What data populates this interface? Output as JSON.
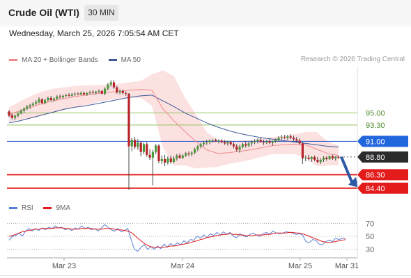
{
  "header": {
    "title": "Crude Oil (WTI)",
    "timeframe": "30 MIN"
  },
  "datetime": "Wednesday, March 25, 2026 7:05:54 AM CET",
  "legend": {
    "ma20_bb": "MA 20 + Bollinger Bands",
    "ma50": "MA 50",
    "credit": "Research © 2026 Trading Central"
  },
  "rsi_legend": {
    "rsi": "RSI",
    "ma9": "9MA"
  },
  "colors": {
    "candle_up": "#4a9a3a",
    "candle_down": "#b8232a",
    "bollinger_fill": "#fbdcdc",
    "ma20": "#f08a8a",
    "ma50": "#3c5a99",
    "level_green": "#8fc05a",
    "level_blue": "#2255cc",
    "level_red": "#e31b1b",
    "label_blue": "#2266dd",
    "label_red": "#e31b1b",
    "label_dark": "#2b2b2b",
    "arrow": "#2e5aa5",
    "rsi_line": "#5a7fd6",
    "rsi_ma": "#e31b1b"
  },
  "chart_data": [
    {
      "type": "candlestick",
      "instrument": "Crude Oil (WTI)",
      "interval": "30 MIN",
      "x_labels": [
        "Mar 23",
        "Mar 24",
        "Mar 25",
        "Mar 31"
      ],
      "ylim": [
        83.5,
        101.5
      ],
      "series": [
        {
          "name": "Price",
          "ohlc": [
            [
              95.2,
              95.4,
              94.4,
              94.6
            ],
            [
              94.7,
              94.9,
              94.1,
              94.3
            ],
            [
              94.3,
              94.8,
              94.0,
              94.6
            ],
            [
              94.6,
              95.1,
              94.4,
              94.9
            ],
            [
              94.9,
              95.5,
              94.8,
              95.3
            ],
            [
              95.3,
              95.8,
              95.0,
              95.6
            ],
            [
              95.6,
              96.1,
              95.4,
              95.9
            ],
            [
              95.9,
              96.3,
              95.6,
              96.1
            ],
            [
              96.1,
              96.5,
              95.9,
              96.3
            ],
            [
              96.3,
              96.8,
              96.1,
              96.5
            ],
            [
              96.5,
              97.2,
              96.3,
              96.9
            ],
            [
              96.9,
              97.1,
              96.2,
              96.4
            ],
            [
              96.4,
              97.0,
              96.2,
              96.8
            ],
            [
              96.8,
              97.3,
              96.6,
              97.1
            ],
            [
              97.1,
              97.4,
              96.6,
              96.8
            ],
            [
              96.8,
              97.2,
              96.6,
              97.0
            ],
            [
              97.0,
              97.5,
              96.8,
              97.3
            ],
            [
              97.3,
              97.6,
              97.0,
              97.2
            ],
            [
              97.2,
              97.6,
              97.0,
              97.4
            ],
            [
              97.4,
              97.7,
              97.2,
              97.5
            ],
            [
              97.5,
              97.8,
              97.3,
              97.4
            ],
            [
              97.4,
              97.8,
              97.3,
              97.6
            ],
            [
              97.6,
              97.9,
              97.4,
              97.7
            ],
            [
              97.7,
              97.9,
              97.5,
              97.6
            ],
            [
              97.6,
              98.0,
              97.5,
              97.8
            ],
            [
              97.8,
              98.0,
              97.5,
              97.6
            ],
            [
              97.6,
              97.9,
              97.4,
              97.8
            ],
            [
              97.8,
              98.1,
              97.6,
              97.9
            ],
            [
              97.9,
              98.2,
              97.7,
              97.8
            ],
            [
              97.8,
              98.1,
              97.6,
              98.0
            ],
            [
              98.0,
              98.3,
              97.8,
              98.1
            ],
            [
              98.1,
              98.2,
              97.6,
              97.7
            ],
            [
              97.7,
              98.6,
              97.5,
              98.4
            ],
            [
              98.4,
              99.2,
              98.2,
              99.0
            ],
            [
              99.0,
              99.6,
              98.7,
              99.3
            ],
            [
              99.3,
              99.6,
              98.4,
              98.6
            ],
            [
              98.6,
              98.8,
              97.7,
              97.9
            ],
            [
              97.9,
              98.3,
              97.6,
              98.1
            ],
            [
              98.1,
              98.3,
              97.6,
              97.8
            ],
            [
              97.8,
              98.0,
              97.4,
              97.7
            ],
            [
              97.7,
              97.8,
              84.2,
              90.3
            ],
            [
              90.3,
              91.5,
              89.6,
              91.2
            ],
            [
              91.2,
              91.6,
              89.9,
              90.2
            ],
            [
              90.2,
              91.3,
              89.8,
              90.8
            ],
            [
              90.8,
              91.0,
              88.9,
              89.5
            ],
            [
              89.5,
              90.8,
              89.2,
              90.6
            ],
            [
              90.6,
              90.9,
              88.8,
              89.1
            ],
            [
              89.1,
              89.9,
              88.4,
              88.7
            ],
            [
              88.7,
              89.8,
              84.8,
              89.5
            ],
            [
              89.5,
              90.6,
              89.2,
              90.4
            ],
            [
              90.4,
              90.6,
              87.9,
              88.2
            ],
            [
              88.2,
              89.0,
              87.8,
              88.5
            ],
            [
              88.5,
              89.1,
              87.5,
              88.0
            ],
            [
              88.0,
              88.9,
              87.7,
              88.6
            ],
            [
              88.6,
              89.0,
              87.8,
              88.1
            ],
            [
              88.1,
              88.9,
              87.9,
              88.6
            ],
            [
              88.6,
              89.2,
              88.3,
              89.0
            ],
            [
              89.0,
              89.3,
              88.5,
              88.7
            ],
            [
              88.7,
              89.2,
              88.5,
              89.0
            ],
            [
              89.0,
              89.5,
              88.8,
              89.3
            ],
            [
              89.3,
              89.6,
              88.9,
              89.2
            ],
            [
              89.2,
              89.6,
              88.9,
              89.4
            ],
            [
              89.4,
              90.1,
              89.2,
              89.9
            ],
            [
              89.9,
              90.5,
              89.6,
              90.3
            ],
            [
              90.3,
              90.8,
              90.0,
              90.6
            ],
            [
              90.6,
              91.0,
              90.3,
              90.8
            ],
            [
              90.8,
              91.2,
              90.5,
              90.9
            ],
            [
              90.9,
              91.3,
              90.6,
              91.1
            ],
            [
              91.1,
              91.3,
              90.8,
              91.2
            ],
            [
              91.2,
              91.4,
              90.9,
              91.0
            ],
            [
              91.0,
              91.3,
              90.7,
              91.1
            ],
            [
              91.1,
              91.3,
              90.7,
              90.9
            ],
            [
              90.9,
              91.2,
              90.5,
              90.7
            ],
            [
              90.7,
              91.1,
              90.4,
              90.9
            ],
            [
              90.9,
              91.1,
              90.4,
              90.6
            ],
            [
              90.6,
              90.9,
              90.0,
              90.3
            ],
            [
              90.3,
              90.6,
              89.5,
              89.8
            ],
            [
              89.8,
              90.5,
              89.4,
              90.2
            ],
            [
              90.2,
              90.8,
              90.0,
              90.6
            ],
            [
              90.6,
              91.0,
              90.1,
              90.4
            ],
            [
              90.4,
              90.9,
              90.2,
              90.7
            ],
            [
              90.7,
              91.1,
              90.3,
              90.9
            ],
            [
              90.9,
              91.3,
              90.6,
              91.0
            ],
            [
              91.0,
              91.4,
              90.7,
              91.2
            ],
            [
              91.2,
              91.5,
              90.8,
              90.9
            ],
            [
              90.9,
              91.2,
              90.5,
              90.8
            ],
            [
              90.8,
              91.2,
              90.6,
              91.0
            ],
            [
              91.0,
              91.3,
              90.6,
              90.8
            ],
            [
              90.8,
              91.1,
              90.4,
              91.0
            ],
            [
              91.0,
              91.4,
              90.8,
              91.2
            ],
            [
              91.2,
              91.7,
              91.0,
              91.5
            ],
            [
              91.5,
              91.9,
              91.2,
              91.6
            ],
            [
              91.6,
              91.9,
              91.3,
              91.5
            ],
            [
              91.5,
              91.9,
              91.2,
              91.7
            ],
            [
              91.7,
              92.0,
              91.3,
              91.5
            ],
            [
              91.5,
              91.8,
              91.0,
              91.3
            ],
            [
              91.3,
              91.6,
              90.8,
              91.1
            ],
            [
              91.1,
              91.4,
              90.5,
              90.7
            ],
            [
              90.7,
              90.9,
              87.8,
              88.6
            ],
            [
              88.6,
              89.0,
              88.2,
              88.7
            ],
            [
              88.7,
              89.1,
              88.3,
              88.5
            ],
            [
              88.5,
              88.9,
              88.1,
              88.8
            ],
            [
              88.8,
              89.0,
              88.2,
              88.4
            ],
            [
              88.4,
              88.8,
              87.9,
              88.1
            ],
            [
              88.1,
              88.6,
              87.8,
              88.4
            ],
            [
              88.4,
              88.9,
              88.1,
              88.7
            ],
            [
              88.7,
              88.9,
              88.3,
              88.5
            ],
            [
              88.5,
              89.0,
              88.4,
              88.9
            ],
            [
              88.9,
              89.1,
              88.4,
              88.6
            ],
            [
              88.6,
              88.9,
              88.3,
              88.8
            ],
            [
              88.8,
              89.0,
              88.5,
              88.7
            ]
          ]
        },
        {
          "name": "MA 50",
          "values": [
            93.6,
            93.9,
            94.3,
            94.7,
            95.1,
            95.5,
            95.8,
            96.0,
            96.3,
            96.6,
            96.9,
            97.2,
            97.4,
            97.5,
            96.7,
            95.9,
            95.0,
            94.3,
            93.6,
            93.0,
            92.5,
            92.1,
            91.8,
            91.5,
            91.3,
            91.1,
            90.9,
            90.7,
            90.5,
            90.3,
            90.2
          ]
        },
        {
          "name": "MA 20 + Bollinger Bands",
          "values": [
            94.8,
            95.3,
            95.8,
            96.3,
            96.7,
            97.0,
            97.3,
            97.5,
            97.7,
            97.9,
            98.0,
            98.2,
            98.3,
            98.2,
            95.6,
            93.9,
            92.4,
            91.0,
            89.8,
            89.3,
            89.4,
            89.6,
            89.8,
            90.1,
            90.4,
            90.5,
            90.6,
            90.5,
            89.9,
            89.3,
            89.0
          ],
          "upper": [
            95.8,
            96.6,
            97.4,
            98.0,
            98.4,
            98.6,
            98.8,
            98.9,
            98.9,
            99.0,
            99.1,
            99.3,
            99.5,
            100.4,
            101.0,
            100.2,
            97.2,
            94.8,
            92.3,
            91.2,
            91.0,
            91.1,
            91.2,
            91.4,
            91.6,
            91.8,
            92.0,
            92.3,
            92.3,
            91.0,
            90.4
          ],
          "lower": [
            93.8,
            94.0,
            94.2,
            94.6,
            95.0,
            95.4,
            95.8,
            96.1,
            96.5,
            96.8,
            97.0,
            97.1,
            97.1,
            96.0,
            90.2,
            87.6,
            87.6,
            87.2,
            87.3,
            87.4,
            87.8,
            88.1,
            88.4,
            88.8,
            89.2,
            89.2,
            89.2,
            88.7,
            87.5,
            87.6,
            87.6
          ]
        }
      ],
      "levels": [
        {
          "value": 95.0,
          "label": "95.00",
          "style": "resistance"
        },
        {
          "value": 93.3,
          "label": "93.30",
          "style": "resistance"
        },
        {
          "value": 91.0,
          "label": "91.00",
          "style": "pivot"
        },
        {
          "value": 88.8,
          "label": "88.80",
          "style": "last"
        },
        {
          "value": 86.3,
          "label": "86.30",
          "style": "support"
        },
        {
          "value": 84.4,
          "label": "84.40",
          "style": "support"
        }
      ]
    },
    {
      "type": "line",
      "title": "RSI",
      "y_ticks": [
        70,
        50,
        30
      ],
      "ylim": [
        20,
        80
      ],
      "series": [
        {
          "name": "RSI",
          "values": [
            44,
            50,
            51,
            55,
            50,
            58,
            62,
            58,
            62,
            59,
            63,
            60,
            64,
            62,
            66,
            63,
            64,
            60,
            62,
            59,
            63,
            61,
            66,
            62,
            64,
            60,
            62,
            58,
            63,
            68,
            64,
            60,
            58,
            62,
            57,
            59,
            62,
            45,
            30,
            27,
            33,
            37,
            30,
            34,
            30,
            35,
            31,
            38,
            33,
            39,
            35,
            40,
            37,
            43,
            40,
            45,
            44,
            50,
            47,
            52,
            48,
            54,
            51,
            56,
            52,
            57,
            53,
            56,
            50,
            48,
            54,
            51,
            49,
            53,
            55,
            52,
            50,
            54,
            56,
            53,
            58,
            55,
            54,
            55,
            57,
            56,
            55,
            53,
            54,
            52,
            42,
            40,
            45,
            44,
            38,
            37,
            42,
            44,
            42,
            47,
            45,
            47,
            46
          ]
        },
        {
          "name": "9MA",
          "values": [
            50,
            51,
            53,
            55,
            57,
            58,
            59,
            60,
            61,
            61,
            62,
            62,
            62,
            62,
            63,
            63,
            63,
            62,
            62,
            61,
            61,
            61,
            62,
            62,
            62,
            62,
            61,
            61,
            61,
            62,
            62,
            62,
            61,
            60,
            60,
            59,
            58,
            56,
            52,
            47,
            43,
            39,
            36,
            34,
            33,
            33,
            33,
            33,
            34,
            35,
            35,
            36,
            37,
            38,
            39,
            40,
            42,
            43,
            45,
            46,
            48,
            49,
            50,
            51,
            52,
            53,
            53,
            54,
            53,
            53,
            52,
            52,
            51,
            51,
            51,
            52,
            52,
            52,
            53,
            53,
            54,
            55,
            55,
            55,
            55,
            56,
            56,
            55,
            55,
            54,
            52,
            50,
            48,
            46,
            44,
            42,
            41,
            40,
            41,
            42,
            43,
            44,
            45
          ]
        }
      ]
    }
  ]
}
